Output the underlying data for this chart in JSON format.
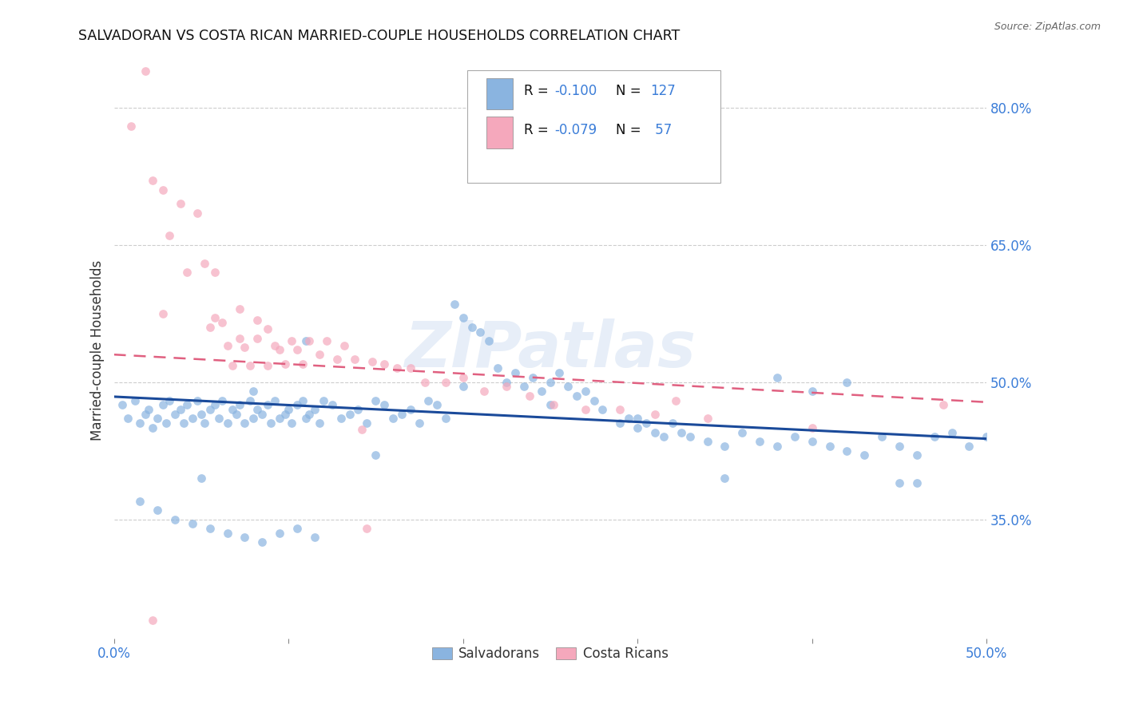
{
  "title": "SALVADORAN VS COSTA RICAN MARRIED-COUPLE HOUSEHOLDS CORRELATION CHART",
  "source": "Source: ZipAtlas.com",
  "ylabel": "Married-couple Households",
  "xlim": [
    0.0,
    0.5
  ],
  "ylim": [
    0.22,
    0.85
  ],
  "xtick_vals": [
    0.0,
    0.1,
    0.2,
    0.3,
    0.4,
    0.5
  ],
  "ytick_vals": [
    0.35,
    0.5,
    0.65,
    0.8
  ],
  "blue_color": "#8AB4E0",
  "pink_color": "#F5A8BC",
  "blue_line_color": "#1A4A9A",
  "pink_line_color": "#E06080",
  "watermark": "ZIPatlas",
  "blue_scatter_x": [
    0.005,
    0.008,
    0.012,
    0.015,
    0.018,
    0.02,
    0.022,
    0.025,
    0.028,
    0.03,
    0.032,
    0.035,
    0.038,
    0.04,
    0.042,
    0.045,
    0.048,
    0.05,
    0.052,
    0.055,
    0.058,
    0.06,
    0.062,
    0.065,
    0.068,
    0.07,
    0.072,
    0.075,
    0.078,
    0.08,
    0.082,
    0.085,
    0.088,
    0.09,
    0.092,
    0.095,
    0.098,
    0.1,
    0.102,
    0.105,
    0.108,
    0.11,
    0.112,
    0.115,
    0.118,
    0.12,
    0.125,
    0.13,
    0.135,
    0.14,
    0.145,
    0.15,
    0.155,
    0.16,
    0.165,
    0.17,
    0.175,
    0.18,
    0.185,
    0.19,
    0.195,
    0.2,
    0.205,
    0.21,
    0.215,
    0.22,
    0.225,
    0.23,
    0.235,
    0.24,
    0.245,
    0.25,
    0.255,
    0.26,
    0.265,
    0.27,
    0.275,
    0.28,
    0.29,
    0.295,
    0.3,
    0.305,
    0.31,
    0.315,
    0.32,
    0.325,
    0.33,
    0.34,
    0.35,
    0.36,
    0.37,
    0.38,
    0.39,
    0.4,
    0.41,
    0.42,
    0.43,
    0.44,
    0.45,
    0.46,
    0.47,
    0.48,
    0.49,
    0.5,
    0.015,
    0.025,
    0.035,
    0.045,
    0.055,
    0.065,
    0.075,
    0.085,
    0.095,
    0.105,
    0.115,
    0.15,
    0.2,
    0.25,
    0.3,
    0.35,
    0.4,
    0.45,
    0.38,
    0.42,
    0.46,
    0.05,
    0.08,
    0.11
  ],
  "blue_scatter_y": [
    0.475,
    0.46,
    0.48,
    0.455,
    0.465,
    0.47,
    0.45,
    0.46,
    0.475,
    0.455,
    0.48,
    0.465,
    0.47,
    0.455,
    0.475,
    0.46,
    0.48,
    0.465,
    0.455,
    0.47,
    0.475,
    0.46,
    0.48,
    0.455,
    0.47,
    0.465,
    0.475,
    0.455,
    0.48,
    0.46,
    0.47,
    0.465,
    0.475,
    0.455,
    0.48,
    0.46,
    0.465,
    0.47,
    0.455,
    0.475,
    0.48,
    0.46,
    0.465,
    0.47,
    0.455,
    0.48,
    0.475,
    0.46,
    0.465,
    0.47,
    0.455,
    0.48,
    0.475,
    0.46,
    0.465,
    0.47,
    0.455,
    0.48,
    0.475,
    0.46,
    0.585,
    0.57,
    0.56,
    0.555,
    0.545,
    0.515,
    0.5,
    0.51,
    0.495,
    0.505,
    0.49,
    0.5,
    0.51,
    0.495,
    0.485,
    0.49,
    0.48,
    0.47,
    0.455,
    0.46,
    0.45,
    0.455,
    0.445,
    0.44,
    0.455,
    0.445,
    0.44,
    0.435,
    0.43,
    0.445,
    0.435,
    0.43,
    0.44,
    0.435,
    0.43,
    0.425,
    0.42,
    0.44,
    0.43,
    0.42,
    0.44,
    0.445,
    0.43,
    0.44,
    0.37,
    0.36,
    0.35,
    0.345,
    0.34,
    0.335,
    0.33,
    0.325,
    0.335,
    0.34,
    0.33,
    0.42,
    0.495,
    0.475,
    0.46,
    0.395,
    0.49,
    0.39,
    0.505,
    0.5,
    0.39,
    0.395,
    0.49,
    0.545
  ],
  "pink_scatter_x": [
    0.01,
    0.018,
    0.022,
    0.028,
    0.032,
    0.038,
    0.042,
    0.048,
    0.052,
    0.055,
    0.058,
    0.062,
    0.065,
    0.068,
    0.072,
    0.075,
    0.078,
    0.082,
    0.088,
    0.092,
    0.095,
    0.098,
    0.102,
    0.105,
    0.108,
    0.112,
    0.118,
    0.122,
    0.128,
    0.132,
    0.138,
    0.142,
    0.148,
    0.155,
    0.162,
    0.17,
    0.178,
    0.19,
    0.2,
    0.212,
    0.225,
    0.238,
    0.252,
    0.27,
    0.29,
    0.31,
    0.34,
    0.022,
    0.072,
    0.082,
    0.145,
    0.322,
    0.475,
    0.028,
    0.058,
    0.088,
    0.4
  ],
  "pink_scatter_y": [
    0.78,
    0.84,
    0.72,
    0.71,
    0.66,
    0.695,
    0.62,
    0.685,
    0.63,
    0.56,
    0.62,
    0.565,
    0.54,
    0.518,
    0.548,
    0.538,
    0.518,
    0.548,
    0.518,
    0.54,
    0.535,
    0.52,
    0.545,
    0.535,
    0.52,
    0.545,
    0.53,
    0.545,
    0.525,
    0.54,
    0.525,
    0.448,
    0.522,
    0.52,
    0.515,
    0.515,
    0.5,
    0.5,
    0.505,
    0.49,
    0.495,
    0.485,
    0.475,
    0.47,
    0.47,
    0.465,
    0.46,
    0.24,
    0.58,
    0.568,
    0.34,
    0.48,
    0.475,
    0.575,
    0.57,
    0.558,
    0.45
  ],
  "blue_trend_x": [
    0.0,
    0.5
  ],
  "blue_trend_y": [
    0.484,
    0.438
  ],
  "pink_trend_x": [
    0.0,
    0.5
  ],
  "pink_trend_y": [
    0.53,
    0.478
  ],
  "background_color": "#FFFFFF",
  "grid_color": "#C8C8C8",
  "title_color": "#111111",
  "axis_label_color": "#333333",
  "tick_label_color": "#3B7DD8",
  "scatter_alpha": 0.7,
  "scatter_size": 60,
  "watermark_color": "#B0C8E8",
  "watermark_alpha": 0.3
}
